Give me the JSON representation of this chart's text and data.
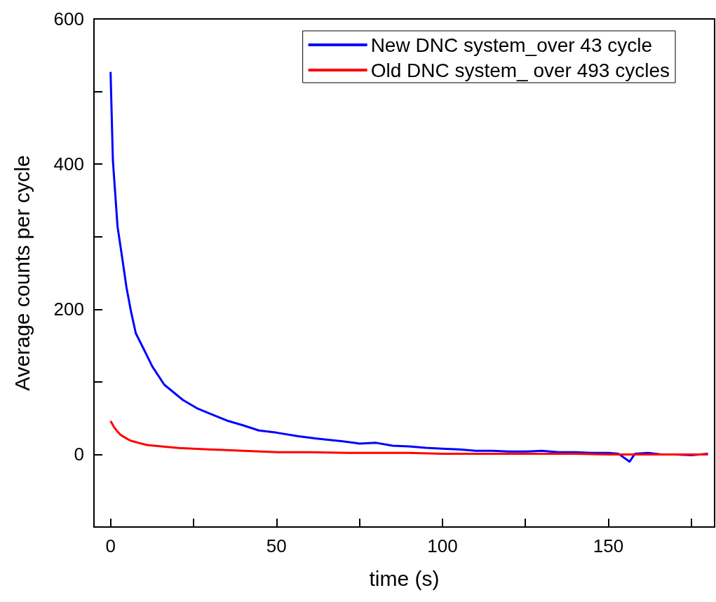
{
  "chart_data": {
    "type": "line",
    "xlabel": "time (s)",
    "ylabel": "Average counts per cycle",
    "xlim": [
      -5,
      182
    ],
    "ylim": [
      -100,
      600
    ],
    "xticks": [
      0,
      {
        "value": 25,
        "label": null
      },
      50,
      {
        "value": 75,
        "label": null
      },
      100,
      {
        "value": 125,
        "label": null
      },
      150,
      {
        "value": 175,
        "label": null
      }
    ],
    "yticks": [
      0,
      {
        "value": 100,
        "label": null
      },
      200,
      {
        "value": 300,
        "label": null
      },
      400,
      {
        "value": 500,
        "label": null
      },
      600
    ],
    "legend": "top right",
    "marker": "none",
    "series": [
      {
        "name": "New DNC system_over 43 cycle",
        "color": "#0000ff",
        "x": [
          0,
          0.7,
          2.1,
          3.5,
          4.8,
          6.2,
          7.6,
          9.9,
          12.6,
          16.2,
          21.8,
          26.3,
          30,
          35.5,
          40,
          44.7,
          50,
          56.6,
          62,
          70,
          75,
          80,
          85,
          90,
          95,
          100,
          105,
          110,
          115,
          120,
          125,
          130,
          135,
          140,
          145,
          150,
          153,
          156.4,
          158,
          162,
          166,
          170,
          175,
          180
        ],
        "values": [
          527,
          405,
          314,
          271,
          230,
          196,
          167,
          146,
          121,
          96,
          75,
          63,
          56,
          46,
          40,
          33,
          30,
          25,
          22,
          18,
          15,
          16,
          12,
          11,
          9,
          8,
          7,
          5,
          5,
          4,
          4,
          5,
          3,
          3,
          2,
          2,
          1,
          -10,
          1,
          2,
          0,
          0,
          -1,
          1
        ]
      },
      {
        "name": "Old DNC system_ over 493 cycles",
        "color": "#ff0000",
        "x": [
          0,
          1,
          2,
          3,
          4.8,
          6,
          8.4,
          11,
          15.4,
          20,
          25,
          29.4,
          35,
          40,
          50.5,
          60,
          71.6,
          80,
          90,
          100,
          110,
          120,
          130,
          140,
          150,
          160,
          170,
          180
        ],
        "values": [
          46,
          38,
          32,
          27,
          22,
          19,
          16,
          13,
          11,
          9,
          8,
          7,
          6,
          5,
          3,
          3,
          2,
          2,
          2,
          1,
          1,
          1,
          1,
          1,
          0,
          0,
          0,
          0
        ]
      }
    ]
  }
}
